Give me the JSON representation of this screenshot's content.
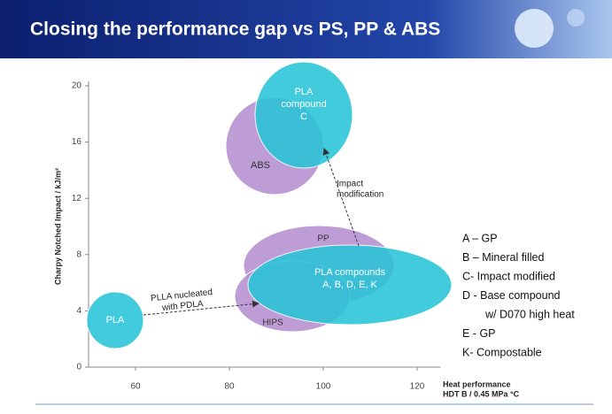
{
  "chart_data": {
    "type": "region",
    "title": "Closing the performance gap vs PS, PP & ABS",
    "ylabel": "Charpy Notched Impact / kJ/m²",
    "xlabel": [
      "Heat performance",
      "HDT B / 0.45 MPa °C"
    ],
    "xlim": [
      50,
      125
    ],
    "ylim": [
      0,
      20
    ],
    "xticks": [
      60,
      80,
      100,
      120
    ],
    "yticks": [
      0,
      4,
      8,
      12,
      16,
      20
    ],
    "regions": [
      {
        "label": [
          "ABS"
        ]
      },
      {
        "label": [
          "PLA",
          "compound",
          "C"
        ]
      },
      {
        "label": [
          "PP"
        ]
      },
      {
        "label": [
          "HIPS"
        ]
      },
      {
        "label": [
          "PLA compounds",
          "A, B, D, E, K"
        ]
      },
      {
        "label": [
          "PLA"
        ]
      }
    ],
    "annotations": [
      [
        "Impact",
        "modification"
      ],
      [
        "PLLA nucleated",
        "with PDLA"
      ]
    ],
    "legend": [
      "A – GP",
      "B – Mineral filled",
      "C- Impact modified",
      "D - Base compound",
      "w/ D070 high heat",
      "E - GP",
      "K- Compostable"
    ]
  }
}
